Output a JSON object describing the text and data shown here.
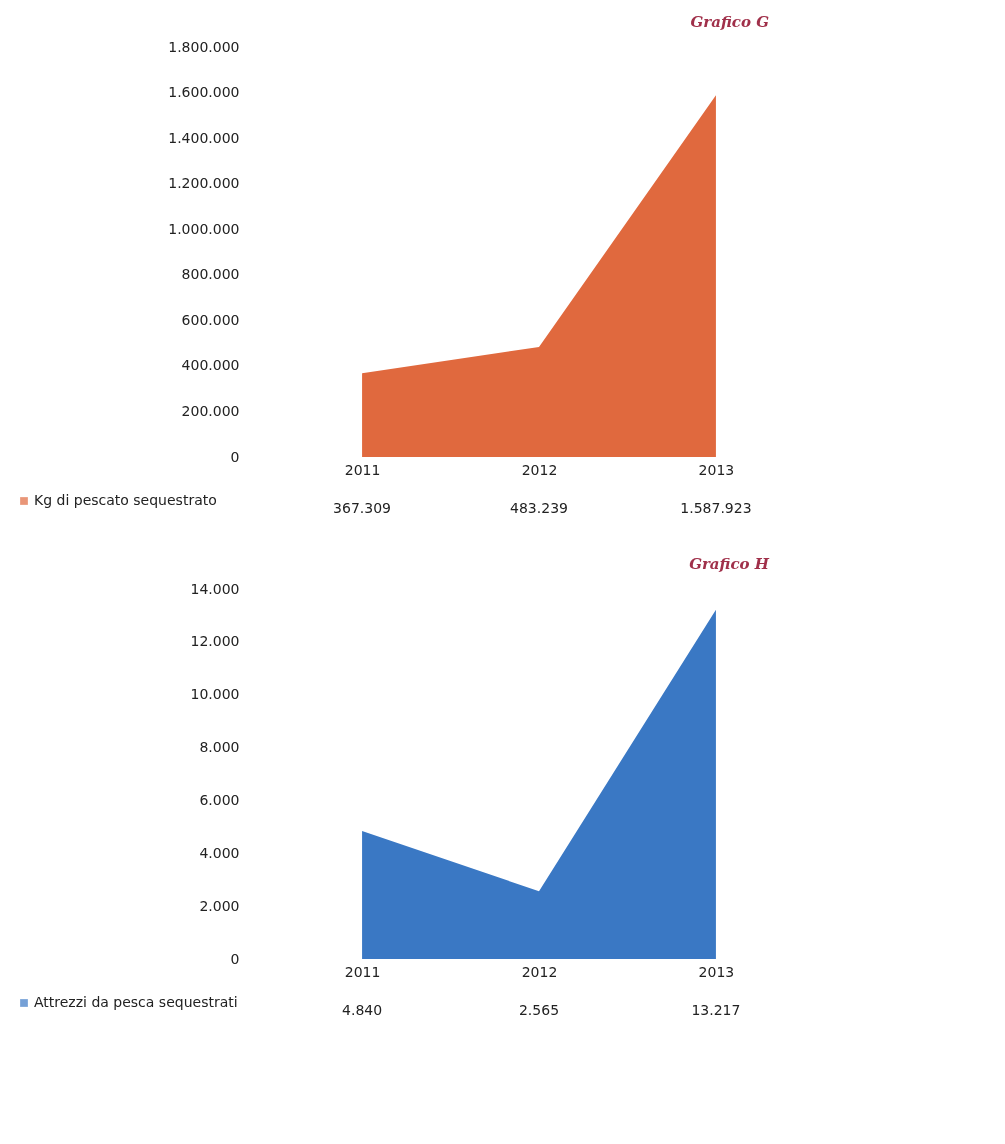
{
  "chart_data": [
    {
      "type": "area",
      "title": "Grafico G",
      "categories": [
        "2011",
        "2012",
        "2013"
      ],
      "series": [
        {
          "name": "Kg di pescato sequestrato",
          "color": "#e0693e",
          "values": [
            367309,
            483239,
            1587923
          ],
          "value_labels": [
            "367.309",
            "483.239",
            "1.587.923"
          ]
        }
      ],
      "ylim": [
        0,
        1800000
      ],
      "yticks": [
        0,
        {
          "value": 200000,
          "label": "200.000"
        },
        {
          "value": 400000,
          "label": "400.000"
        },
        {
          "value": 600000,
          "label": "600.000"
        },
        {
          "value": 800000,
          "label": "800.000"
        },
        {
          "value": 1000000,
          "label": "1.000.000"
        },
        {
          "value": 1200000,
          "label": "1.200.000"
        },
        {
          "value": 1400000,
          "label": "1.400.000"
        },
        {
          "value": 1600000,
          "label": "1.600.000"
        },
        {
          "value": 1800000,
          "label": "1.800.000"
        }
      ],
      "legend": "bottom left"
    },
    {
      "type": "area",
      "title": "Grafico H",
      "categories": [
        "2011",
        "2012",
        "2013"
      ],
      "series": [
        {
          "name": "Attrezzi da pesca sequestrati",
          "color": "#3a78c4",
          "values": [
            4840,
            2565,
            13217
          ],
          "value_labels": [
            "4.840",
            "2.565",
            "13.217"
          ]
        }
      ],
      "ylim": [
        0,
        14000
      ],
      "yticks": [
        0,
        {
          "value": 2000,
          "label": "2.000"
        },
        {
          "value": 4000,
          "label": "4.000"
        },
        {
          "value": 6000,
          "label": "6.000"
        },
        {
          "value": 8000,
          "label": "8.000"
        },
        {
          "value": 10000,
          "label": "10.000"
        },
        {
          "value": 12000,
          "label": "12.000"
        },
        {
          "value": 14000,
          "label": "14.000"
        }
      ],
      "legend": "bottom left"
    }
  ]
}
